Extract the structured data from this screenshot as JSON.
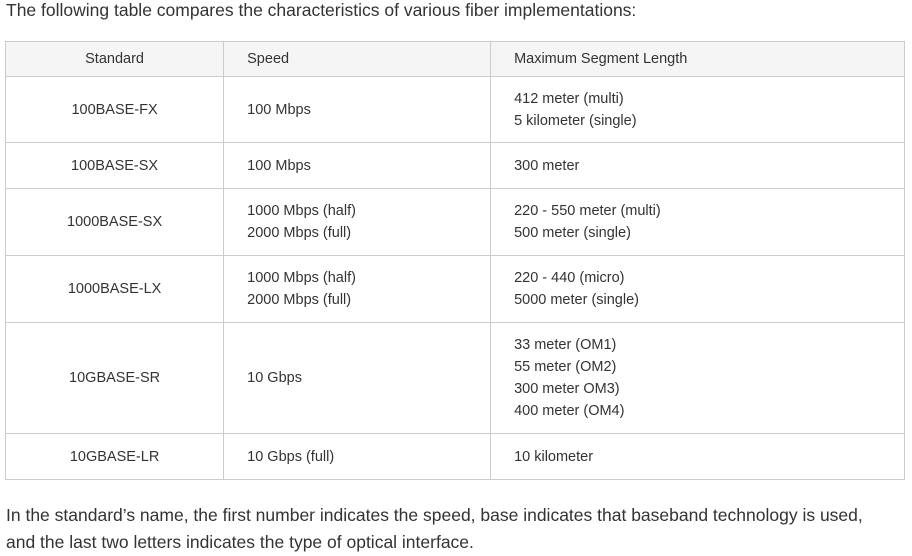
{
  "intro_text": "The following table compares the characteristics of various fiber implementations:",
  "table": {
    "headers": [
      "Standard",
      "Speed",
      "Maximum Segment Length"
    ],
    "rows": [
      {
        "standard": "100BASE-FX",
        "speed": [
          "100 Mbps"
        ],
        "length": [
          "412 meter (multi)",
          "5 kilometer (single)"
        ]
      },
      {
        "standard": "100BASE-SX",
        "speed": [
          "100 Mbps"
        ],
        "length": [
          "300 meter"
        ]
      },
      {
        "standard": "1000BASE-SX",
        "speed": [
          "1000 Mbps (half)",
          "2000 Mbps (full)"
        ],
        "length": [
          "220 - 550 meter (multi)",
          "500 meter (single)"
        ]
      },
      {
        "standard": "1000BASE-LX",
        "speed": [
          "1000 Mbps (half)",
          "2000 Mbps (full)"
        ],
        "length": [
          "220 - 440 (micro)",
          "5000 meter (single)"
        ]
      },
      {
        "standard": "10GBASE-SR",
        "speed": [
          "10 Gbps"
        ],
        "length": [
          "33 meter (OM1)",
          "55 meter (OM2)",
          "300 meter OM3)",
          "400 meter (OM4)"
        ]
      },
      {
        "standard": "10GBASE-LR",
        "speed": [
          "10 Gbps (full)"
        ],
        "length": [
          "10 kilometer"
        ]
      }
    ]
  },
  "outro_text": "In the standard’s name, the first number indicates the speed, base indicates that baseband technology is used, and the last two letters indicates the type of optical interface."
}
